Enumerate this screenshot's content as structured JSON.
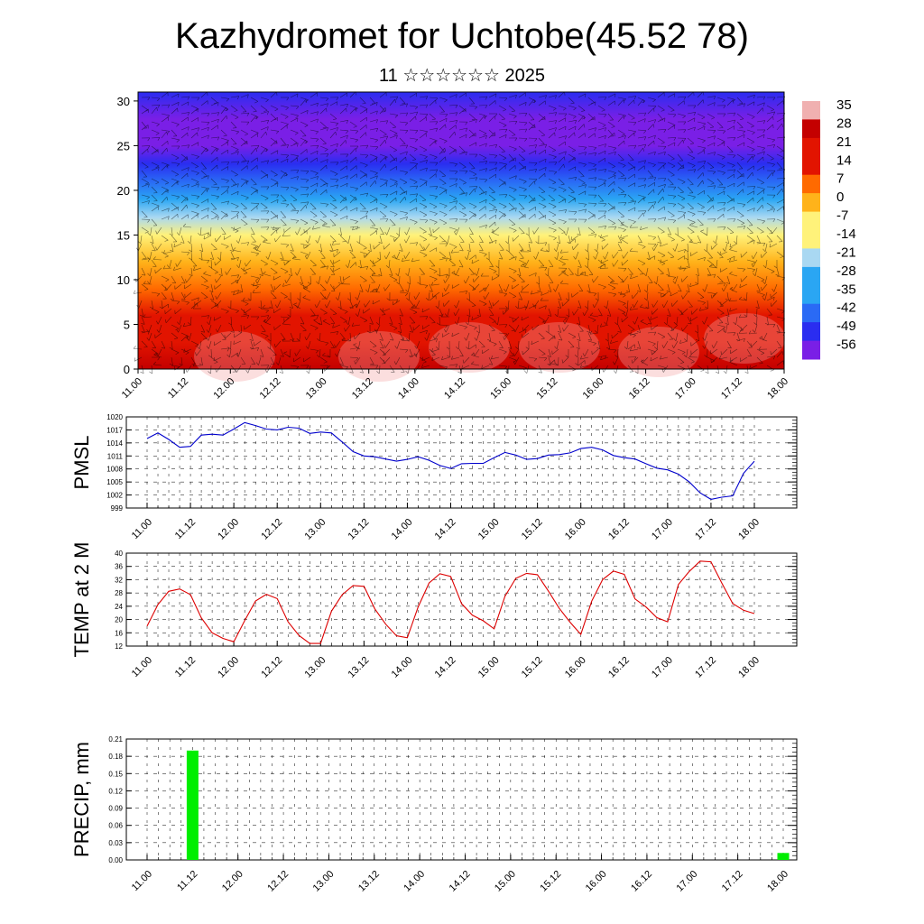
{
  "title": "Kazhydromet for Uchtobe(45.52 78)",
  "subtitle": "11 ☆☆☆☆☆☆ 2025",
  "colors": {
    "pmsl_line": "#0000cc",
    "temp_line": "#dd0000",
    "precip_bar": "#00ee00",
    "temperature_scale": [
      "#7a1fe6",
      "#2a2df0",
      "#2a6af5",
      "#2aa6f3",
      "#a9d8f2",
      "#fff27a",
      "#ffb31a",
      "#ff6a00",
      "#e21400",
      "#c40000",
      "#f0b0b0"
    ]
  },
  "x_tick_labels": [
    "11.00",
    "11.12",
    "12.00",
    "12.12",
    "13.00",
    "13.12",
    "14.00",
    "14.12",
    "15.00",
    "15.12",
    "16.00",
    "16.12",
    "17.00",
    "17.12",
    "18.00"
  ],
  "chart_data": [
    {
      "type": "heatmap",
      "title": "",
      "xlabel": "",
      "ylabel": "",
      "x_ticks": [
        "11.00",
        "11.12",
        "12.00",
        "12.12",
        "13.00",
        "13.12",
        "14.00",
        "14.12",
        "15.00",
        "15.12",
        "16.00",
        "16.12",
        "17.00",
        "17.12",
        "18.00"
      ],
      "y_ticks": [
        0,
        5,
        10,
        15,
        20,
        25,
        30
      ],
      "ylim": [
        0,
        31
      ],
      "colorbar_labels": [
        "35",
        "28",
        "21",
        "14",
        "7",
        "0",
        "-7",
        "-14",
        "-21",
        "-28",
        "-35",
        "-42",
        "-49",
        "-56"
      ],
      "overlay": "wind barbs",
      "temperature_profile": {
        "heights": [
          0,
          3,
          6,
          9,
          12,
          15,
          17,
          19,
          21,
          23,
          25,
          28,
          31
        ],
        "values": [
          28,
          20,
          14,
          7,
          0,
          -7,
          -16,
          -28,
          -42,
          -52,
          -58,
          -56,
          -54
        ]
      }
    },
    {
      "type": "line",
      "title": "",
      "ylabel": "PMSL",
      "ylim": [
        999,
        1020
      ],
      "y_ticks": [
        999,
        1002,
        1005,
        1008,
        1011,
        1014,
        1017,
        1020
      ],
      "x_ticks": [
        "11.00",
        "11.12",
        "12.00",
        "12.12",
        "13.00",
        "13.12",
        "14.00",
        "14.12",
        "15.00",
        "15.12",
        "16.00",
        "16.12",
        "17.00",
        "17.12",
        "18.00"
      ],
      "series": [
        {
          "values": [
            1015,
            1016.3,
            1014.8,
            1013,
            1013.2,
            1015.8,
            1016,
            1015.8,
            1017.2,
            1018.7,
            1018,
            1017.2,
            1017,
            1017.6,
            1017.4,
            1016.2,
            1016.5,
            1016.3,
            1014.2,
            1012,
            1011,
            1010.8,
            1010.3,
            1009.8,
            1010.2,
            1010.8,
            1010,
            1008.8,
            1008.1,
            1009.2,
            1009.3,
            1009.3,
            1010.6,
            1011.8,
            1011.2,
            1010.2,
            1010.4,
            1011.2,
            1011.3,
            1011.7,
            1012.7,
            1013,
            1012.4,
            1011.1,
            1010.6,
            1010.3,
            1009.2,
            1008.2,
            1007.8,
            1006.8,
            1005,
            1002.5,
            1001,
            1001.5,
            1001.8,
            1007,
            1009.8
          ]
        }
      ]
    },
    {
      "type": "line",
      "title": "",
      "ylabel": "TEMP at 2 M",
      "ylim": [
        12,
        40
      ],
      "y_ticks": [
        12,
        16,
        20,
        24,
        28,
        32,
        36,
        40
      ],
      "x_ticks": [
        "11.00",
        "11.12",
        "12.00",
        "12.12",
        "13.00",
        "13.12",
        "14.00",
        "14.12",
        "15.00",
        "15.12",
        "16.00",
        "16.12",
        "17.00",
        "17.12",
        "18.00"
      ],
      "series": [
        {
          "values": [
            18,
            24.5,
            28.5,
            29.2,
            27.5,
            20.5,
            16,
            14.3,
            13.3,
            19.7,
            25.6,
            27.6,
            26.3,
            19.3,
            15.2,
            12.8,
            12.8,
            22.5,
            27.5,
            30.2,
            30,
            23.2,
            18.6,
            15.1,
            14.5,
            23.8,
            31,
            33.8,
            33,
            24.8,
            21.3,
            19.6,
            17.2,
            27,
            32.4,
            33.9,
            33.5,
            28.6,
            23.4,
            19.2,
            15.5,
            25.5,
            32,
            34.6,
            33.6,
            26.2,
            23.8,
            20.6,
            19.3,
            30.6,
            34.5,
            37.6,
            37.4,
            31,
            24.8,
            22.8,
            21.8
          ]
        }
      ]
    },
    {
      "type": "bar",
      "title": "",
      "ylabel": "PRECIP, mm",
      "ylim": [
        0,
        0.21
      ],
      "y_ticks": [
        "0.00",
        "0.03",
        "0.06",
        "0.09",
        "0.12",
        "0.15",
        "0.18",
        "0.21"
      ],
      "x_ticks": [
        "11.00",
        "11.12",
        "12.00",
        "12.12",
        "13.00",
        "13.12",
        "14.00",
        "14.12",
        "15.00",
        "15.12",
        "16.00",
        "16.12",
        "17.00",
        "17.12",
        "18.00"
      ],
      "bars": [
        {
          "x": "11.12",
          "value": 0.19
        },
        {
          "x": "18.00",
          "value": 0.012
        }
      ]
    }
  ]
}
